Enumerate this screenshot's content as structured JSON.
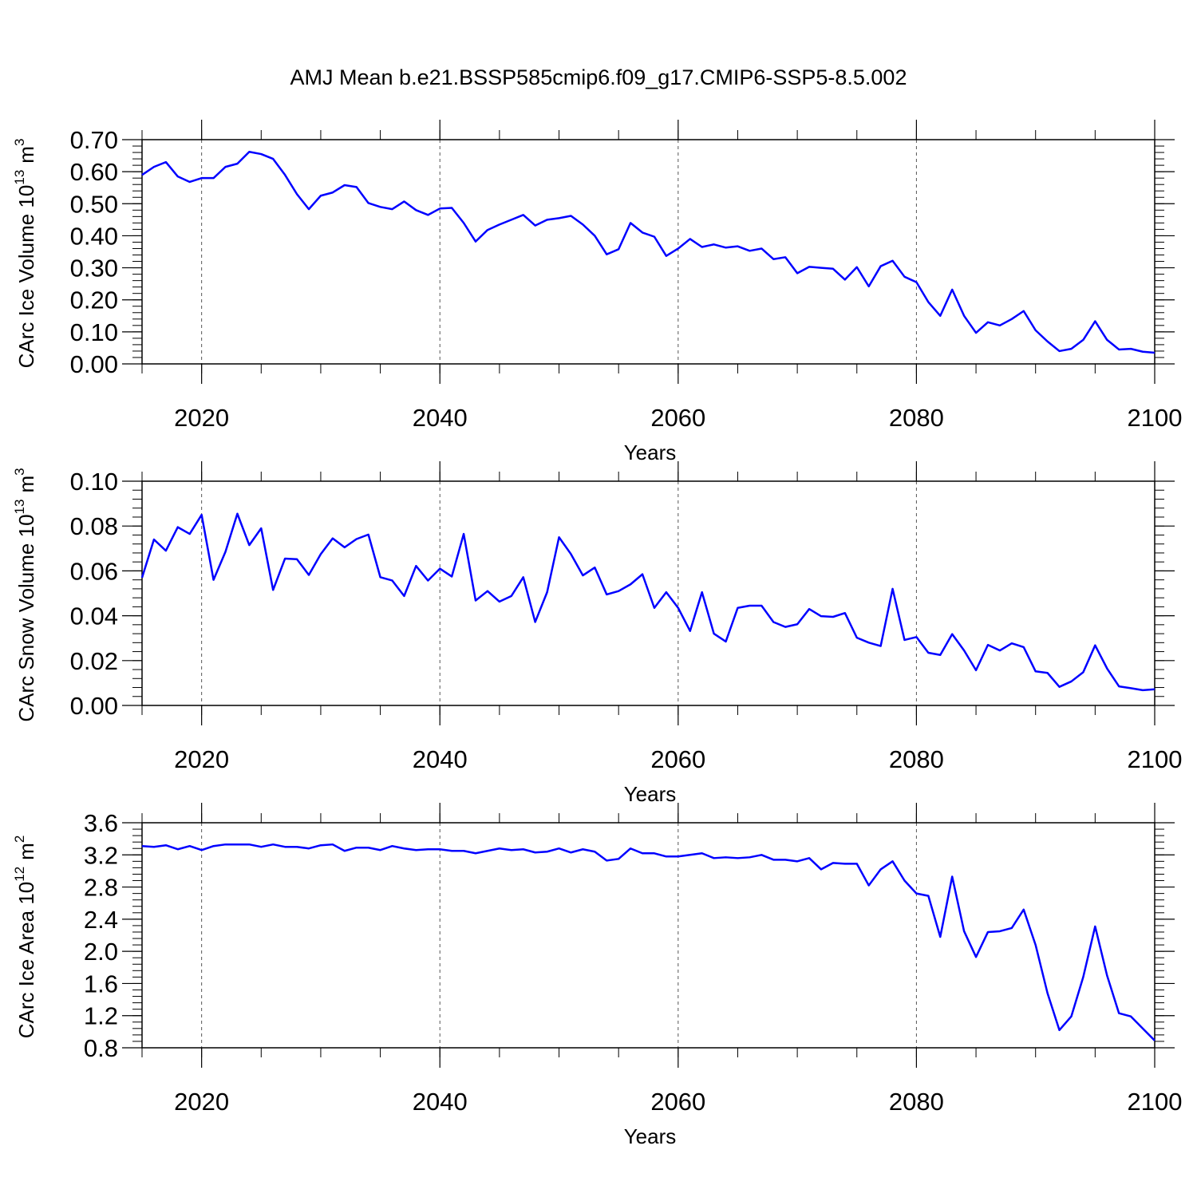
{
  "title": "AMJ Mean b.e21.BSSP585cmip6.f09_g17.CMIP6-SSP5-8.5.002",
  "line_color": "#0000ff",
  "chart_data": [
    {
      "type": "line",
      "title": "",
      "xlabel": "Years",
      "ylabel_main": "CArc Ice Volume 10",
      "ylabel_exp": "13",
      "ylabel_unit": "m",
      "ylabel_unit_exp": "3",
      "xlim": [
        2015,
        2100
      ],
      "ylim": [
        0.0,
        0.7
      ],
      "x_ticks": [
        2020,
        2040,
        2060,
        2080,
        2100
      ],
      "y_ticks": [
        "0.00",
        "0.10",
        "0.20",
        "0.30",
        "0.40",
        "0.50",
        "0.60",
        "0.70"
      ],
      "y_tick_values": [
        0.0,
        0.1,
        0.2,
        0.3,
        0.4,
        0.5,
        0.6,
        0.7
      ],
      "y_minor_step": 0.02,
      "grid": "dashed vertical at major x ticks",
      "series": [
        {
          "values": [
            0.59,
            0.615,
            0.63,
            0.585,
            0.568,
            0.58,
            0.58,
            0.615,
            0.625,
            0.662,
            0.655,
            0.64,
            0.59,
            0.53,
            0.483,
            0.525,
            0.535,
            0.558,
            0.552,
            0.502,
            0.49,
            0.483,
            0.507,
            0.48,
            0.465,
            0.485,
            0.487,
            0.44,
            0.382,
            0.418,
            0.435,
            0.45,
            0.465,
            0.432,
            0.45,
            0.455,
            0.462,
            0.435,
            0.4,
            0.342,
            0.358,
            0.44,
            0.41,
            0.397,
            0.337,
            0.36,
            0.39,
            0.365,
            0.373,
            0.363,
            0.367,
            0.353,
            0.36,
            0.327,
            0.333,
            0.283,
            0.303,
            0.3,
            0.297,
            0.263,
            0.302,
            0.242,
            0.305,
            0.322,
            0.272,
            0.255,
            0.193,
            0.15,
            0.232,
            0.15,
            0.097,
            0.13,
            0.12,
            0.14,
            0.165,
            0.105,
            0.07,
            0.04,
            0.047,
            0.075,
            0.133,
            0.075,
            0.045,
            0.047,
            0.038,
            0.035
          ]
        }
      ]
    },
    {
      "type": "line",
      "title": "",
      "xlabel": "Years",
      "ylabel_main": "CArc Snow Volume 10",
      "ylabel_exp": "13",
      "ylabel_unit": "m",
      "ylabel_unit_exp": "3",
      "xlim": [
        2015,
        2100
      ],
      "ylim": [
        0.0,
        0.1
      ],
      "x_ticks": [
        2020,
        2040,
        2060,
        2080,
        2100
      ],
      "y_ticks": [
        "0.00",
        "0.02",
        "0.04",
        "0.06",
        "0.08",
        "0.10"
      ],
      "y_tick_values": [
        0.0,
        0.02,
        0.04,
        0.06,
        0.08,
        0.1
      ],
      "y_minor_step": 0.004,
      "grid": "dashed vertical at major x ticks",
      "series": [
        {
          "values": [
            0.057,
            0.074,
            0.069,
            0.0795,
            0.0765,
            0.085,
            0.056,
            0.0685,
            0.0855,
            0.0715,
            0.079,
            0.0515,
            0.0655,
            0.0652,
            0.0582,
            0.0675,
            0.0745,
            0.0705,
            0.0742,
            0.0762,
            0.0572,
            0.0557,
            0.0488,
            0.0622,
            0.0557,
            0.061,
            0.0575,
            0.0765,
            0.0468,
            0.051,
            0.0463,
            0.0488,
            0.0572,
            0.0372,
            0.0505,
            0.075,
            0.0675,
            0.058,
            0.0615,
            0.0495,
            0.051,
            0.054,
            0.0585,
            0.0435,
            0.0505,
            0.0435,
            0.0332,
            0.0505,
            0.032,
            0.0285,
            0.0435,
            0.0445,
            0.0445,
            0.0372,
            0.035,
            0.0362,
            0.043,
            0.0398,
            0.0395,
            0.0412,
            0.0302,
            0.028,
            0.0265,
            0.052,
            0.0292,
            0.0305,
            0.0235,
            0.0225,
            0.0318,
            0.0245,
            0.0157,
            0.027,
            0.0245,
            0.0277,
            0.026,
            0.0152,
            0.0145,
            0.0083,
            0.0107,
            0.0148,
            0.0268,
            0.0165,
            0.0085,
            0.0077,
            0.0068,
            0.0072
          ]
        }
      ]
    },
    {
      "type": "line",
      "title": "",
      "xlabel": "Years",
      "ylabel_main": "CArc Ice Area 10",
      "ylabel_exp": "12",
      "ylabel_unit": "m",
      "ylabel_unit_exp": "2",
      "xlim": [
        2015,
        2100
      ],
      "ylim": [
        0.8,
        3.6
      ],
      "x_ticks": [
        2020,
        2040,
        2060,
        2080,
        2100
      ],
      "y_ticks": [
        "0.8",
        "1.2",
        "1.6",
        "2.0",
        "2.4",
        "2.8",
        "3.2",
        "3.6"
      ],
      "y_tick_values": [
        0.8,
        1.2,
        1.6,
        2.0,
        2.4,
        2.8,
        3.2,
        3.6
      ],
      "y_minor_step": 0.08,
      "grid": "dashed vertical at major x ticks",
      "series": [
        {
          "values": [
            3.31,
            3.3,
            3.32,
            3.27,
            3.31,
            3.26,
            3.31,
            3.33,
            3.33,
            3.33,
            3.3,
            3.33,
            3.3,
            3.3,
            3.28,
            3.32,
            3.33,
            3.25,
            3.29,
            3.29,
            3.26,
            3.31,
            3.28,
            3.26,
            3.27,
            3.27,
            3.25,
            3.25,
            3.22,
            3.25,
            3.28,
            3.26,
            3.27,
            3.23,
            3.24,
            3.28,
            3.23,
            3.27,
            3.24,
            3.13,
            3.15,
            3.28,
            3.22,
            3.22,
            3.18,
            3.18,
            3.2,
            3.22,
            3.16,
            3.17,
            3.16,
            3.17,
            3.2,
            3.14,
            3.14,
            3.12,
            3.16,
            3.02,
            3.1,
            3.09,
            3.09,
            2.82,
            3.02,
            3.12,
            2.88,
            2.72,
            2.69,
            2.18,
            2.93,
            2.25,
            1.93,
            2.24,
            2.25,
            2.29,
            2.52,
            2.08,
            1.48,
            1.02,
            1.19,
            1.68,
            2.31,
            1.7,
            1.23,
            1.19,
            1.04,
            0.89
          ]
        }
      ]
    }
  ]
}
